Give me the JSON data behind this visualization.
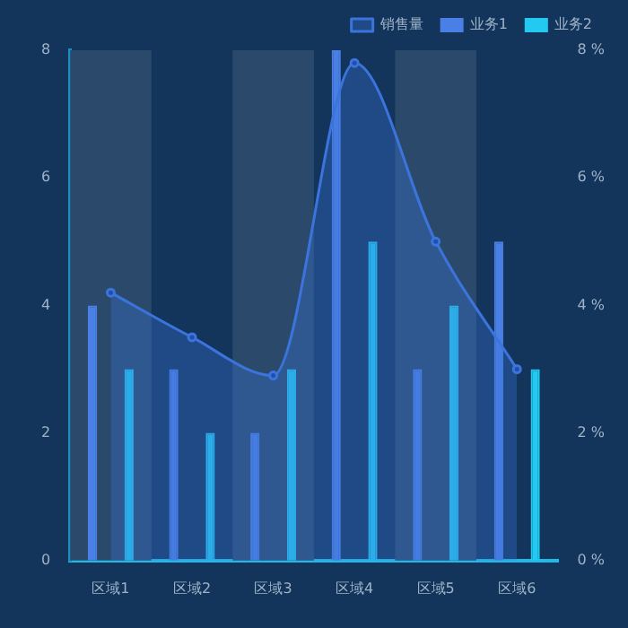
{
  "chart_data": {
    "type": "bar",
    "categories": [
      "区域1",
      "区域2",
      "区域3",
      "区域4",
      "区域5",
      "区域6"
    ],
    "series": [
      {
        "name": "销售量",
        "type": "area",
        "axis": "y2",
        "color": "#3b74dc",
        "values": [
          4.2,
          3.5,
          2.9,
          7.8,
          5.0,
          3.0
        ]
      },
      {
        "name": "业务1",
        "color": "#4a80e6",
        "values": [
          4,
          3,
          2,
          8,
          3,
          5
        ]
      },
      {
        "name": "业务2",
        "color": "#22c9f0",
        "values": [
          3,
          2,
          3,
          5,
          4,
          3
        ]
      }
    ],
    "ylim": [
      0,
      8
    ],
    "yticks": [
      0,
      2,
      4,
      6,
      8
    ],
    "y2lim": [
      0,
      8
    ],
    "y2ticks": [
      {
        "value": 0,
        "label": "0 %"
      },
      {
        "value": 2,
        "label": "2 %"
      },
      {
        "value": 4,
        "label": "4 %"
      },
      {
        "value": 6,
        "label": "6 %"
      },
      {
        "value": 8,
        "label": "8 %"
      }
    ],
    "bands": [
      {
        "axis": "x",
        "from": "区域1",
        "to": "区域1",
        "color": "#2b4a6b"
      },
      {
        "axis": "x",
        "from": "区域3",
        "to": "区域3",
        "color": "#2b4a6b"
      },
      {
        "axis": "x",
        "from": "区域5",
        "to": "区域5",
        "color": "#2b4a6b"
      }
    ],
    "grid": false,
    "legend": "top right",
    "marker": "circle"
  }
}
